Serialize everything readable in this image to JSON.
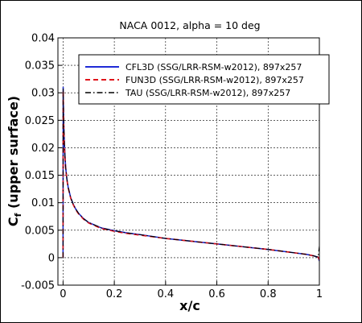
{
  "chart_data": {
    "type": "line",
    "title": "NACA 0012, alpha = 10 deg",
    "xlabel": "x/c",
    "ylabel_main": "C",
    "ylabel_sub": "f",
    "ylabel_rest": " (upper surface)",
    "xlim": [
      -0.02,
      1.0
    ],
    "ylim": [
      -0.005,
      0.04
    ],
    "x_ticks": [
      0,
      0.2,
      0.4,
      0.6,
      0.8,
      1
    ],
    "x_tick_labels": [
      "0",
      "0.2",
      "0.4",
      "0.6",
      "0.8",
      "1"
    ],
    "y_ticks": [
      -0.005,
      0,
      0.005,
      0.01,
      0.015,
      0.02,
      0.025,
      0.03,
      0.035,
      0.04
    ],
    "y_tick_labels": [
      "-0.005",
      "0",
      "0.005",
      "0.01",
      "0.015",
      "0.02",
      "0.025",
      "0.03",
      "0.035",
      "0.04"
    ],
    "grid": true,
    "legend_position": "top-right",
    "colors": {
      "cfl3d": "#1f2bd6",
      "fun3d": "#e0141b",
      "tau": "#000000"
    },
    "series": [
      {
        "name": "CFL3D (SSG/LRR-RSM-w2012), 897x257",
        "x": [
          0,
          0.0005,
          0.001,
          0.002,
          0.003,
          0.005,
          0.0075,
          0.01,
          0.015,
          0.02,
          0.03,
          0.04,
          0.05,
          0.06,
          0.08,
          0.1,
          0.15,
          0.2,
          0.25,
          0.3,
          0.4,
          0.5,
          0.6,
          0.7,
          0.8,
          0.9,
          0.95,
          0.98,
          0.995,
          1.0
        ],
        "y": [
          0.0,
          0.031,
          0.029,
          0.026,
          0.024,
          0.021,
          0.0185,
          0.0165,
          0.0143,
          0.0128,
          0.0109,
          0.0097,
          0.0088,
          0.0081,
          0.0071,
          0.0064,
          0.0054,
          0.0049,
          0.0045,
          0.0042,
          0.0035,
          0.003,
          0.0025,
          0.002,
          0.0015,
          0.0009,
          0.0006,
          0.0003,
          0.0001,
          -0.0006
        ]
      },
      {
        "name": "FUN3D (SSG/LRR-RSM-w2012), 897x257",
        "x": [
          0,
          0.0005,
          0.001,
          0.002,
          0.003,
          0.005,
          0.0075,
          0.01,
          0.015,
          0.02,
          0.03,
          0.04,
          0.05,
          0.06,
          0.08,
          0.1,
          0.15,
          0.2,
          0.25,
          0.3,
          0.4,
          0.5,
          0.6,
          0.7,
          0.8,
          0.9,
          0.95,
          0.98,
          0.995,
          1.0
        ],
        "y": [
          0.0,
          0.0305,
          0.0288,
          0.0258,
          0.0238,
          0.0209,
          0.0184,
          0.0164,
          0.0142,
          0.0127,
          0.0108,
          0.0096,
          0.0087,
          0.008,
          0.007,
          0.0063,
          0.0053,
          0.0048,
          0.0044,
          0.0041,
          0.0035,
          0.003,
          0.0025,
          0.002,
          0.0015,
          0.0009,
          0.0006,
          0.0003,
          0.0001,
          -0.0004
        ]
      },
      {
        "name": "TAU (SSG/LRR-RSM-w2012), 897x257",
        "x": [
          0,
          0.0005,
          0.001,
          0.002,
          0.003,
          0.005,
          0.0075,
          0.01,
          0.015,
          0.02,
          0.03,
          0.04,
          0.05,
          0.06,
          0.08,
          0.1,
          0.15,
          0.2,
          0.25,
          0.3,
          0.4,
          0.5,
          0.6,
          0.7,
          0.8,
          0.9,
          0.95,
          0.98,
          0.995,
          1.0
        ],
        "y": [
          0.0,
          0.0308,
          0.0289,
          0.0259,
          0.0239,
          0.021,
          0.0185,
          0.0165,
          0.0143,
          0.0128,
          0.0109,
          0.0097,
          0.0088,
          0.0081,
          0.0071,
          0.0064,
          0.0054,
          0.0049,
          0.0045,
          0.0042,
          0.0035,
          0.003,
          0.0025,
          0.002,
          0.0015,
          0.0009,
          0.0006,
          0.0003,
          0.0001,
          0.0021
        ]
      }
    ]
  }
}
